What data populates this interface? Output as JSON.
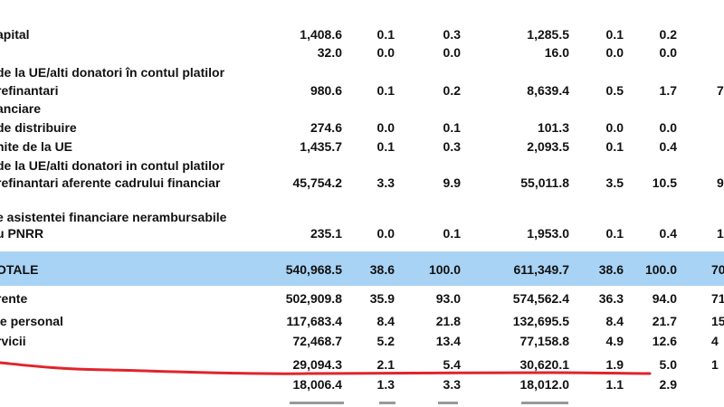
{
  "colors": {
    "highlight_row": "#a9d3f5",
    "annotation_stroke": "#e0242c"
  },
  "table": {
    "rows": [
      {
        "label": "apital",
        "v": [
          "1,408.6",
          "0.1",
          "0.3",
          "1,285.5",
          "0.1",
          "0.2"
        ],
        "extra": ""
      },
      {
        "label": "",
        "v": [
          "32.0",
          "0.0",
          "0.0",
          "16.0",
          "0.0",
          "0.0"
        ],
        "extra": ""
      },
      {
        "label": "de la UE/alti donatori în contul platilor",
        "v": [
          "",
          "",
          "",
          "",
          "",
          ""
        ],
        "extra": ""
      },
      {
        "label": "refinantari",
        "v": [
          "980.6",
          "0.1",
          "0.2",
          "8,639.4",
          "0.5",
          "1.7"
        ],
        "extra": "7"
      },
      {
        "label": "anciare",
        "v": [
          "",
          "",
          "",
          "",
          "",
          ""
        ],
        "extra": ""
      },
      {
        "label": "de distribuire",
        "v": [
          "274.6",
          "0.0",
          "0.1",
          "101.3",
          "0.0",
          "0.0"
        ],
        "extra": ""
      },
      {
        "label": "nite de la UE",
        "v": [
          "1,435.7",
          "0.1",
          "0.3",
          "2,093.5",
          "0.1",
          "0.4"
        ],
        "extra": ""
      },
      {
        "label": "de la UE/alti donatori in contul platilor",
        "v": [
          "",
          "",
          "",
          "",
          "",
          ""
        ],
        "extra": ""
      },
      {
        "label": "refinantari aferente cadrului financiar",
        "v": [
          "45,754.2",
          "3.3",
          "9.9",
          "55,011.8",
          "3.5",
          "10.5"
        ],
        "extra": "9"
      },
      {
        "label": "e asistentei financiare nerambursabile",
        "v": [
          "",
          "",
          "",
          "",
          "",
          ""
        ],
        "extra": ""
      },
      {
        "label": "u PNRR",
        "v": [
          "235.1",
          "0.0",
          "0.1",
          "1,953.0",
          "0.1",
          "0.4"
        ],
        "extra": "1"
      },
      {
        "label": "OTALE",
        "v": [
          "540,968.5",
          "38.6",
          "100.0",
          "611,349.7",
          "38.6",
          "100.0"
        ],
        "extra": "70"
      },
      {
        "label": "rente",
        "v": [
          "502,909.8",
          "35.9",
          "93.0",
          "574,562.4",
          "36.3",
          "94.0"
        ],
        "extra": "71"
      },
      {
        "label": "le personal",
        "v": [
          "117,683.4",
          "8.4",
          "21.8",
          "132,695.5",
          "8.4",
          "21.7"
        ],
        "extra": "15"
      },
      {
        "label": "rvicii",
        "v": [
          "72,468.7",
          "5.2",
          "13.4",
          "77,158.8",
          "4.9",
          "12.6"
        ],
        "extra": "4"
      },
      {
        "label": "",
        "v": [
          "29,094.3",
          "2.1",
          "5.4",
          "30,620.1",
          "1.9",
          "5.0"
        ],
        "extra": "1"
      },
      {
        "label": "",
        "v": [
          "18,006.4",
          "1.3",
          "3.3",
          "18,012.0",
          "1.1",
          "2.9"
        ],
        "extra": ""
      }
    ]
  }
}
